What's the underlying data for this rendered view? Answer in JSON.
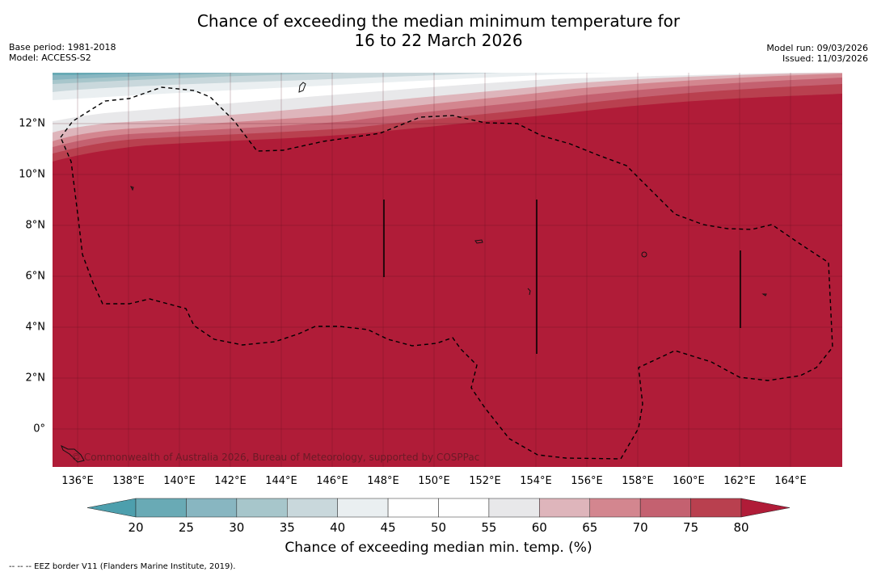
{
  "title": {
    "line1": "Chance of exceeding the median minimum temperature for",
    "line2": "16 to 22 March 2026"
  },
  "meta": {
    "base_period": "Base period: 1981-2018",
    "model": "Model: ACCESS-S2",
    "model_run": "Model run: 09/03/2026",
    "issued": "Issued: 11/03/2026"
  },
  "map": {
    "latitude_labels": [
      "12°N",
      "10°N",
      "8°N",
      "6°N",
      "4°N",
      "2°N",
      "0°"
    ],
    "longitude_labels": [
      "136°E",
      "138°E",
      "140°E",
      "142°E",
      "144°E",
      "146°E",
      "148°E",
      "150°E",
      "152°E",
      "154°E",
      "156°E",
      "158°E",
      "160°E",
      "162°E",
      "164°E"
    ],
    "copyright": "© Commonwealth of Australia 2026, Bureau of Meteorology, supported by COSPPac",
    "base_fill_color": "#b01c38"
  },
  "colorbar": {
    "ticks": [
      "20",
      "25",
      "30",
      "35",
      "40",
      "45",
      "50",
      "55",
      "60",
      "65",
      "70",
      "75",
      "80"
    ],
    "colors": [
      "#69aab5",
      "#88b6c1",
      "#a7c6cb",
      "#c9d8dc",
      "#eaeff1",
      "#ffffff",
      "#ffffff",
      "#e8e8ea",
      "#deb5bb",
      "#d3868f",
      "#c46170",
      "#b9404f"
    ],
    "under_color": "#4d9fad",
    "over_color": "#b01c38",
    "label": "Chance of exceeding median min. temp. (%)"
  },
  "footnote": "--  --  -- EEZ border V11 (Flanders Marine Institute, 2019)."
}
